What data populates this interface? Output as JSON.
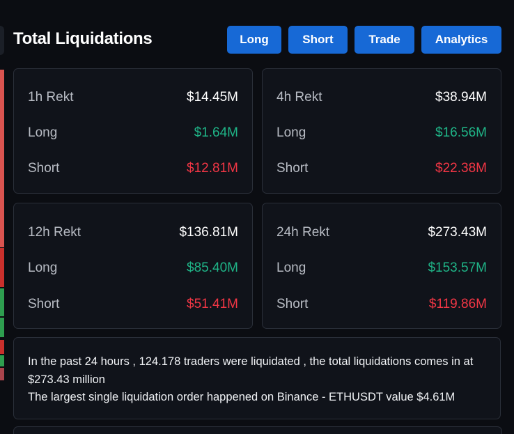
{
  "header": {
    "title": "Total Liquidations",
    "buttons": [
      "Long",
      "Short",
      "Trade",
      "Analytics"
    ]
  },
  "cards": [
    {
      "period": "1h Rekt",
      "total": "$14.45M",
      "long_label": "Long",
      "long": "$1.64M",
      "short_label": "Short",
      "short": "$12.81M"
    },
    {
      "period": "4h Rekt",
      "total": "$38.94M",
      "long_label": "Long",
      "long": "$16.56M",
      "short_label": "Short",
      "short": "$22.38M"
    },
    {
      "period": "12h Rekt",
      "total": "$136.81M",
      "long_label": "Long",
      "long": "$85.40M",
      "short_label": "Short",
      "short": "$51.41M"
    },
    {
      "period": "24h Rekt",
      "total": "$273.43M",
      "long_label": "Long",
      "long": "$153.57M",
      "short_label": "Short",
      "short": "$119.86M"
    }
  ],
  "summary": {
    "line1": "In the past 24 hours , 124.178 traders were liquidated , the total liquidations comes in at $273.43 million",
    "line2": "The largest single liquidation order happened on Binance - ETHUSDT value $4.61M"
  },
  "colors": {
    "accent": "#1769d6",
    "long": "#1fb487",
    "short": "#f23645",
    "background": "#0b0d12",
    "card": "#10131a"
  }
}
